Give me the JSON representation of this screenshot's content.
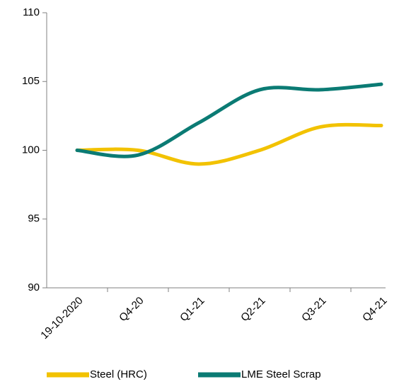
{
  "chart_data": {
    "type": "line",
    "categories": [
      "19-10-2020",
      "Q4-20",
      "Q1-21",
      "Q2-21",
      "Q3-21",
      "Q4-21"
    ],
    "series": [
      {
        "name": "Steel (HRC)",
        "color": "#f2c200",
        "values": [
          100,
          100,
          99.0,
          100,
          101.7,
          101.8
        ]
      },
      {
        "name": "LME Steel Scrap",
        "color": "#0b7b74",
        "values": [
          100,
          99.65,
          102.0,
          104.4,
          104.4,
          104.8
        ]
      }
    ],
    "ylim": [
      90,
      110
    ],
    "yticks": [
      90,
      95,
      100,
      105,
      110
    ],
    "smooth": true,
    "grid": false,
    "legend": "bottom"
  }
}
